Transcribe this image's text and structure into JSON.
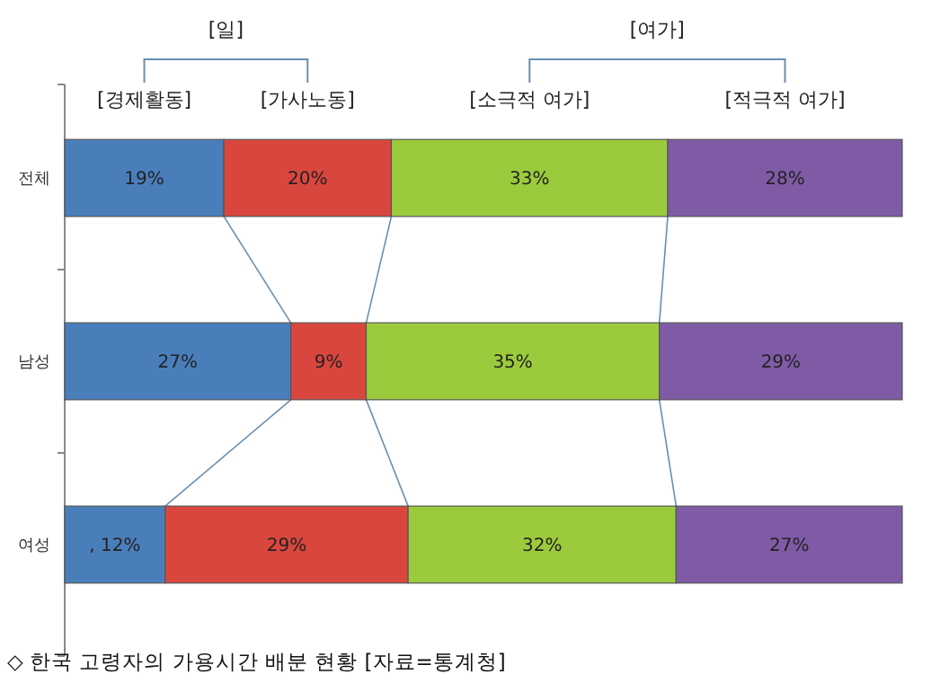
{
  "chart_data": {
    "type": "bar",
    "orientation": "horizontal",
    "stacked": true,
    "categories": [
      "전체",
      "남성",
      "여성"
    ],
    "xlim": [
      0,
      100
    ],
    "tick_labels": "y",
    "grid": false,
    "legend": "top",
    "series": [
      {
        "name": "[경제활동]",
        "color": "#4a7ebb",
        "values": [
          19,
          27,
          12
        ],
        "value_labels": [
          "19%",
          "27%",
          ", 12%"
        ]
      },
      {
        "name": "[가사노동]",
        "color": "#d9463e",
        "values": [
          20,
          9,
          29
        ],
        "value_labels": [
          "20%",
          "9%",
          "29%"
        ]
      },
      {
        "name": "[소극적 여가]",
        "color": "#9bcb3c",
        "values": [
          33,
          35,
          32
        ],
        "value_labels": [
          "33%",
          "35%",
          "32%"
        ]
      },
      {
        "name": "[적극적 여가]",
        "color": "#7f5ba6",
        "values": [
          28,
          29,
          27
        ],
        "value_labels": [
          "28%",
          "29%",
          "27%"
        ]
      }
    ],
    "annotations": [
      "[일]",
      "[여가]",
      "◇ 한국 고령자의 가용시간 배분 현황 [자료=통계청]"
    ]
  }
}
